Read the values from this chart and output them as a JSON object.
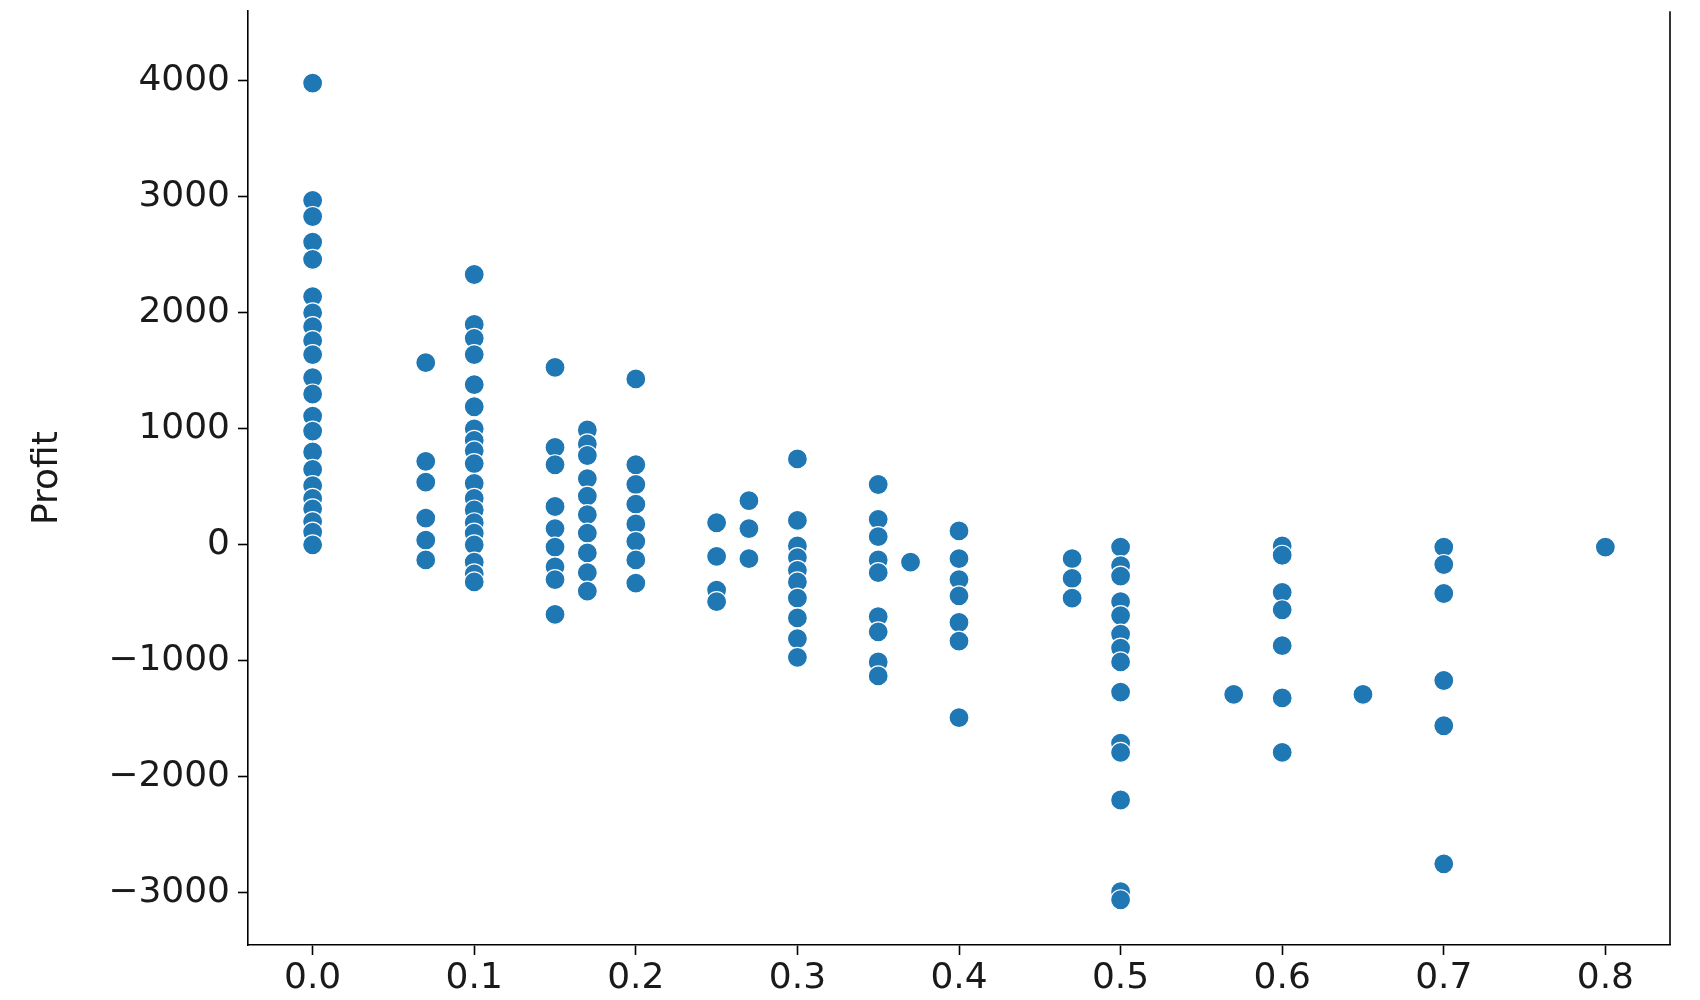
{
  "chart_data": {
    "type": "scatter",
    "ylabel": "Profit",
    "color": "#1f77b4",
    "marker": "circle",
    "legend": false,
    "x": [
      0,
      0,
      0,
      0,
      0,
      0,
      0,
      0,
      0,
      0,
      0,
      0,
      0,
      0,
      0,
      0,
      0,
      0,
      0,
      0,
      0,
      0,
      0.07,
      0.07,
      0.07,
      0.07,
      0.07,
      0.07,
      0.1,
      0.1,
      0.1,
      0.1,
      0.1,
      0.1,
      0.1,
      0.1,
      0.1,
      0.1,
      0.1,
      0.1,
      0.1,
      0.1,
      0.1,
      0.1,
      0.1,
      0.1,
      0.1,
      0.15,
      0.15,
      0.15,
      0.15,
      0.15,
      0.15,
      0.15,
      0.15,
      0.15,
      0.17,
      0.17,
      0.17,
      0.17,
      0.17,
      0.17,
      0.17,
      0.17,
      0.17,
      0.17,
      0.2,
      0.2,
      0.2,
      0.2,
      0.2,
      0.2,
      0.2,
      0.2,
      0.25,
      0.25,
      0.25,
      0.25,
      0.27,
      0.27,
      0.27,
      0.3,
      0.3,
      0.3,
      0.3,
      0.3,
      0.3,
      0.3,
      0.3,
      0.3,
      0.3,
      0.35,
      0.35,
      0.35,
      0.35,
      0.35,
      0.35,
      0.35,
      0.35,
      0.35,
      0.37,
      0.4,
      0.4,
      0.4,
      0.4,
      0.4,
      0.4,
      0.4,
      0.47,
      0.47,
      0.47,
      0.5,
      0.5,
      0.5,
      0.5,
      0.5,
      0.5,
      0.5,
      0.5,
      0.5,
      0.5,
      0.5,
      0.5,
      0.5,
      0.5,
      0.57,
      0.6,
      0.6,
      0.6,
      0.6,
      0.6,
      0.6,
      0.6,
      0.65,
      0.7,
      0.7,
      0.7,
      0.7,
      0.7,
      0.7,
      0.8
    ],
    "values": [
      3980,
      2970,
      2830,
      2610,
      2460,
      2140,
      2000,
      1880,
      1760,
      1640,
      1440,
      1300,
      1110,
      980,
      800,
      650,
      510,
      400,
      310,
      200,
      110,
      0,
      1570,
      720,
      540,
      230,
      40,
      -130,
      2330,
      1900,
      1780,
      1640,
      1380,
      1190,
      1000,
      900,
      810,
      700,
      530,
      400,
      300,
      190,
      100,
      0,
      -150,
      -250,
      -320,
      1530,
      840,
      690,
      330,
      140,
      -20,
      -190,
      -300,
      -600,
      990,
      870,
      770,
      570,
      420,
      260,
      100,
      -70,
      -240,
      -400,
      1430,
      690,
      520,
      350,
      180,
      30,
      -130,
      -330,
      190,
      -100,
      -390,
      -490,
      380,
      140,
      -120,
      740,
      210,
      -10,
      -110,
      -220,
      -320,
      -460,
      -630,
      -810,
      -970,
      520,
      220,
      70,
      -130,
      -240,
      -620,
      -750,
      -1010,
      -1130,
      -150,
      120,
      -120,
      -300,
      -440,
      -670,
      -830,
      -1490,
      -120,
      -290,
      -460,
      -20,
      -180,
      -270,
      -490,
      -610,
      -770,
      -890,
      -1010,
      -1270,
      -1710,
      -1790,
      -2200,
      -2990,
      -3060,
      -1290,
      -10,
      -90,
      -410,
      -560,
      -870,
      -1320,
      -1790,
      -1290,
      -20,
      -170,
      -420,
      -1170,
      -1560,
      -2750,
      -20
    ],
    "xlim": [
      -0.04,
      0.84
    ],
    "xticks": [
      {
        "value": 0,
        "label": "0.0"
      },
      0.1,
      0.2,
      0.3,
      0.4,
      0.5,
      0.6,
      0.7,
      0.8
    ],
    "ylim": [
      -3450,
      4600
    ],
    "yticks": [
      {
        "value": -3000,
        "label": "−3000"
      },
      {
        "value": -2000,
        "label": "−2000"
      },
      {
        "value": -1000,
        "label": "−1000"
      },
      0,
      1000,
      2000,
      3000,
      4000
    ]
  }
}
